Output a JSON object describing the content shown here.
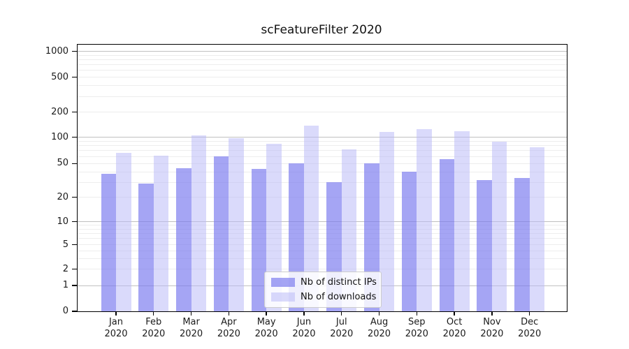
{
  "chart_data": {
    "type": "bar",
    "title": "scFeatureFilter 2020",
    "categories": [
      "Jan",
      "Feb",
      "Mar",
      "Apr",
      "May",
      "Jun",
      "Jul",
      "Aug",
      "Sep",
      "Oct",
      "Nov",
      "Dec"
    ],
    "category_year": "2020",
    "series": [
      {
        "name": "Nb of distinct IPs",
        "color": "#7676ee",
        "alpha": 0.66,
        "values": [
          38,
          29,
          44,
          60,
          43,
          50,
          30,
          50,
          40,
          56,
          32,
          34
        ]
      },
      {
        "name": "Nb of downloads",
        "color": "#b9b9f8",
        "alpha": 0.52,
        "values": [
          66,
          61,
          105,
          98,
          84,
          137,
          73,
          116,
          125,
          118,
          89,
          77
        ]
      }
    ],
    "y_ticks": [
      0,
      1,
      2,
      5,
      10,
      20,
      50,
      100,
      200,
      500,
      1000
    ],
    "y_scale": "symlog",
    "ylim": [
      0,
      1200
    ],
    "grid": true,
    "legend_position": "lower center",
    "colors": {
      "major_grid": "#c0c0c0",
      "minor_grid": "#ededed",
      "axis": "#000000",
      "text": "#1a1a1a"
    }
  }
}
